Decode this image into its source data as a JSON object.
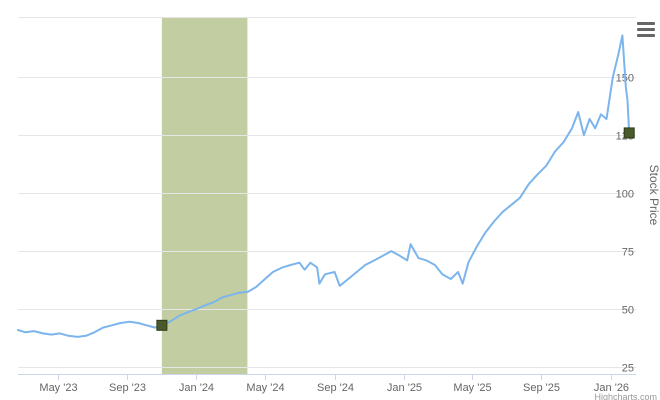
{
  "chart_data": {
    "type": "line",
    "title": "",
    "ylabel": "Stock Price",
    "xlabel": "",
    "ylim": [
      22,
      176
    ],
    "xlim": [
      "2023-02-20",
      "2026-02-15"
    ],
    "yticks": [
      25,
      50,
      75,
      100,
      125,
      150
    ],
    "xticks": [
      {
        "date": "2023-05-01",
        "label": "May '23"
      },
      {
        "date": "2023-09-01",
        "label": "Sep '23"
      },
      {
        "date": "2024-01-01",
        "label": "Jan '24"
      },
      {
        "date": "2024-05-01",
        "label": "May '24"
      },
      {
        "date": "2024-09-01",
        "label": "Sep '24"
      },
      {
        "date": "2025-01-01",
        "label": "Jan '25"
      },
      {
        "date": "2025-05-01",
        "label": "May '25"
      },
      {
        "date": "2025-09-01",
        "label": "Sep '25"
      },
      {
        "date": "2026-01-01",
        "label": "Jan '26"
      }
    ],
    "grid": true,
    "shaded_band": {
      "from": "2023-11-01",
      "to": "2024-03-31",
      "color": "#c2cea1"
    },
    "series": [
      {
        "color": "#7cb5ec",
        "points": [
          [
            "2023-02-20",
            41
          ],
          [
            "2023-03-05",
            40
          ],
          [
            "2023-03-20",
            40.5
          ],
          [
            "2023-04-05",
            39.5
          ],
          [
            "2023-04-20",
            39
          ],
          [
            "2023-05-05",
            39.5
          ],
          [
            "2023-05-20",
            38.5
          ],
          [
            "2023-06-05",
            38
          ],
          [
            "2023-06-20",
            38.5
          ],
          [
            "2023-07-05",
            40
          ],
          [
            "2023-07-20",
            42
          ],
          [
            "2023-08-05",
            43
          ],
          [
            "2023-08-20",
            44
          ],
          [
            "2023-09-05",
            44.5
          ],
          [
            "2023-09-20",
            44
          ],
          [
            "2023-10-05",
            43
          ],
          [
            "2023-10-20",
            42
          ],
          [
            "2023-11-01",
            43
          ],
          [
            "2023-11-15",
            44.5
          ],
          [
            "2023-12-01",
            47
          ],
          [
            "2023-12-15",
            48.5
          ],
          [
            "2024-01-01",
            50
          ],
          [
            "2024-01-15",
            51.5
          ],
          [
            "2024-02-01",
            53
          ],
          [
            "2024-02-15",
            55
          ],
          [
            "2024-03-01",
            56
          ],
          [
            "2024-03-15",
            57
          ],
          [
            "2024-04-01",
            57.5
          ],
          [
            "2024-04-15",
            59.5
          ],
          [
            "2024-05-01",
            63
          ],
          [
            "2024-05-15",
            66
          ],
          [
            "2024-06-01",
            68
          ],
          [
            "2024-06-15",
            69
          ],
          [
            "2024-07-01",
            70
          ],
          [
            "2024-07-10",
            67
          ],
          [
            "2024-07-20",
            70
          ],
          [
            "2024-08-01",
            68
          ],
          [
            "2024-08-05",
            61
          ],
          [
            "2024-08-15",
            65
          ],
          [
            "2024-09-01",
            66
          ],
          [
            "2024-09-10",
            60
          ],
          [
            "2024-09-25",
            63
          ],
          [
            "2024-10-10",
            66
          ],
          [
            "2024-10-25",
            69
          ],
          [
            "2024-11-10",
            71
          ],
          [
            "2024-11-25",
            73
          ],
          [
            "2024-12-10",
            75
          ],
          [
            "2024-12-25",
            73
          ],
          [
            "2025-01-07",
            71
          ],
          [
            "2025-01-13",
            78
          ],
          [
            "2025-01-27",
            72
          ],
          [
            "2025-02-10",
            71
          ],
          [
            "2025-02-25",
            69
          ],
          [
            "2025-03-10",
            65
          ],
          [
            "2025-03-25",
            63
          ],
          [
            "2025-04-07",
            66
          ],
          [
            "2025-04-15",
            61
          ],
          [
            "2025-04-25",
            70
          ],
          [
            "2025-05-10",
            77
          ],
          [
            "2025-05-25",
            83
          ],
          [
            "2025-06-10",
            88
          ],
          [
            "2025-06-25",
            92
          ],
          [
            "2025-07-10",
            95
          ],
          [
            "2025-07-25",
            98
          ],
          [
            "2025-08-10",
            104
          ],
          [
            "2025-08-25",
            108
          ],
          [
            "2025-09-10",
            112
          ],
          [
            "2025-09-25",
            118
          ],
          [
            "2025-10-10",
            122
          ],
          [
            "2025-10-25",
            128
          ],
          [
            "2025-11-05",
            135
          ],
          [
            "2025-11-15",
            125
          ],
          [
            "2025-11-25",
            132
          ],
          [
            "2025-12-05",
            128
          ],
          [
            "2025-12-15",
            134
          ],
          [
            "2025-12-25",
            132
          ],
          [
            "2026-01-05",
            150
          ],
          [
            "2026-01-15",
            160
          ],
          [
            "2026-01-22",
            168
          ],
          [
            "2026-01-28",
            146
          ],
          [
            "2026-01-31",
            140
          ],
          [
            "2026-02-03",
            126
          ]
        ]
      }
    ],
    "markers": [
      {
        "date": "2023-11-01",
        "value": 43,
        "color": "#4a5a2a"
      },
      {
        "date": "2026-02-03",
        "value": 126,
        "color": "#4a5a2a"
      }
    ],
    "credits": "Highcharts.com"
  },
  "icons": {
    "menu": "hamburger-menu-icon"
  }
}
